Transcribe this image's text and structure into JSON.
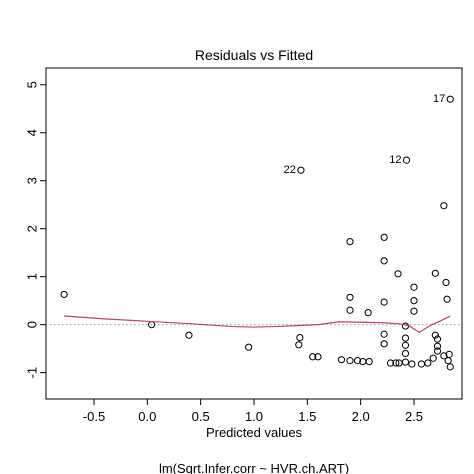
{
  "chart_data": {
    "type": "scatter",
    "title": "Residuals vs Fitted",
    "xlabel": "Predicted values",
    "xlabel_sub": "lm(Sqrt.Infer.corr ~ HVR.ch.ART)",
    "ylabel": "",
    "xlim": [
      -0.95,
      2.95
    ],
    "ylim": [
      -1.55,
      5.35
    ],
    "xticks": [
      -0.5,
      0.0,
      0.5,
      1.0,
      1.5,
      2.0,
      2.5
    ],
    "xtick_labels": [
      "-0.5",
      "0.0",
      "0.5",
      "1.0",
      "1.5",
      "2.0",
      "2.5"
    ],
    "yticks": [
      -1,
      0,
      1,
      2,
      3,
      4,
      5
    ],
    "ytick_labels": [
      "-1",
      "0",
      "1",
      "2",
      "3",
      "4",
      "5"
    ],
    "reference_line": 0,
    "grid": false,
    "points": [
      {
        "x": -0.78,
        "y": 0.63
      },
      {
        "x": 0.04,
        "y": 0.0
      },
      {
        "x": 0.39,
        "y": -0.22
      },
      {
        "x": 0.95,
        "y": -0.47
      },
      {
        "x": 1.44,
        "y": 3.22,
        "label": "22"
      },
      {
        "x": 1.43,
        "y": -0.27
      },
      {
        "x": 1.42,
        "y": -0.42
      },
      {
        "x": 1.55,
        "y": -0.67
      },
      {
        "x": 1.6,
        "y": -0.67
      },
      {
        "x": 1.82,
        "y": -0.73
      },
      {
        "x": 1.9,
        "y": 1.73
      },
      {
        "x": 1.9,
        "y": 0.57
      },
      {
        "x": 1.9,
        "y": 0.3
      },
      {
        "x": 1.9,
        "y": -0.75
      },
      {
        "x": 1.97,
        "y": -0.75
      },
      {
        "x": 2.02,
        "y": -0.77
      },
      {
        "x": 2.07,
        "y": 0.25
      },
      {
        "x": 2.08,
        "y": -0.77
      },
      {
        "x": 2.22,
        "y": 1.82
      },
      {
        "x": 2.22,
        "y": 1.33
      },
      {
        "x": 2.22,
        "y": 0.47
      },
      {
        "x": 2.22,
        "y": -0.2
      },
      {
        "x": 2.22,
        "y": -0.4
      },
      {
        "x": 2.28,
        "y": -0.8
      },
      {
        "x": 2.33,
        "y": -0.8
      },
      {
        "x": 2.36,
        "y": -0.8
      },
      {
        "x": 2.35,
        "y": 1.06
      },
      {
        "x": 2.43,
        "y": 3.43,
        "label": "12"
      },
      {
        "x": 2.42,
        "y": -0.03
      },
      {
        "x": 2.42,
        "y": -0.28
      },
      {
        "x": 2.42,
        "y": -0.43
      },
      {
        "x": 2.42,
        "y": -0.6
      },
      {
        "x": 2.42,
        "y": -0.78
      },
      {
        "x": 2.48,
        "y": -0.82
      },
      {
        "x": 2.5,
        "y": 0.78
      },
      {
        "x": 2.5,
        "y": 0.5
      },
      {
        "x": 2.5,
        "y": 0.28
      },
      {
        "x": 2.57,
        "y": -0.82
      },
      {
        "x": 2.63,
        "y": -0.8
      },
      {
        "x": 2.68,
        "y": -0.7
      },
      {
        "x": 2.7,
        "y": 1.07
      },
      {
        "x": 2.7,
        "y": -0.22
      },
      {
        "x": 2.72,
        "y": -0.3
      },
      {
        "x": 2.72,
        "y": -0.45
      },
      {
        "x": 2.72,
        "y": -0.55
      },
      {
        "x": 2.78,
        "y": 2.48
      },
      {
        "x": 2.8,
        "y": 0.88
      },
      {
        "x": 2.81,
        "y": 0.53
      },
      {
        "x": 2.78,
        "y": -0.65
      },
      {
        "x": 2.82,
        "y": -0.75
      },
      {
        "x": 2.83,
        "y": -0.62
      },
      {
        "x": 2.84,
        "y": -0.88
      },
      {
        "x": 2.84,
        "y": 4.7,
        "label": "17"
      }
    ],
    "smooth_line": {
      "color": "#b4475f",
      "x": [
        -0.78,
        -0.4,
        0.0,
        0.4,
        0.8,
        1.0,
        1.2,
        1.4,
        1.6,
        1.8,
        2.0,
        2.2,
        2.35,
        2.45,
        2.55,
        2.65,
        2.75,
        2.84
      ],
      "y": [
        0.18,
        0.12,
        0.07,
        0.02,
        -0.04,
        -0.05,
        -0.04,
        -0.02,
        0.0,
        0.06,
        0.05,
        0.04,
        0.02,
        -0.02,
        -0.16,
        -0.02,
        0.08,
        0.18
      ]
    }
  }
}
